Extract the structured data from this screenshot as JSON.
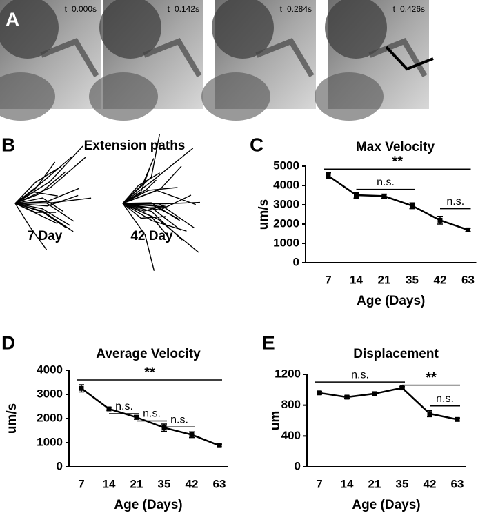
{
  "panel_a": {
    "label": "A",
    "frames": [
      "t=0.000s",
      "t=0.142s",
      "t=0.284s",
      "t=0.426s"
    ]
  },
  "panel_b": {
    "label": "B",
    "title": "Extension paths",
    "groups": [
      "7 Day",
      "42 Day"
    ]
  },
  "chart_data": [
    {
      "type": "line",
      "panel": "C",
      "title": "Max Velocity",
      "y_label": "um/s",
      "x_label": "Age (Days)",
      "categories": [
        "7",
        "14",
        "21",
        "35",
        "42",
        "63"
      ],
      "series": [
        {
          "color": "#000000",
          "values": [
            4500,
            3500,
            3450,
            2950,
            2200,
            1700
          ],
          "errors": [
            150,
            150,
            100,
            150,
            200,
            80
          ]
        }
      ],
      "ylim": [
        0,
        5000
      ],
      "yticks": [
        0,
        1000,
        2000,
        3000,
        4000,
        5000
      ],
      "annotations": [
        {
          "label": "**",
          "span": [
            0,
            5
          ],
          "y": 4850
        },
        {
          "label": "n.s.",
          "span": [
            1,
            3
          ],
          "y": 3800
        },
        {
          "label": "n.s.",
          "span": [
            4,
            5
          ],
          "y": 2800
        }
      ]
    },
    {
      "type": "line",
      "panel": "D",
      "title": "Average Velocity",
      "y_label": "um/s",
      "x_label": "Age (Days)",
      "categories": [
        "7",
        "14",
        "21",
        "35",
        "42",
        "63"
      ],
      "series": [
        {
          "color": "#000000",
          "values": [
            3250,
            2400,
            2050,
            1620,
            1330,
            880
          ],
          "errors": [
            150,
            50,
            80,
            150,
            120,
            60
          ]
        }
      ],
      "ylim": [
        0,
        4000
      ],
      "yticks": [
        0,
        1000,
        2000,
        3000,
        4000
      ],
      "annotations": [
        {
          "label": "**",
          "span": [
            0,
            5
          ],
          "y": 3600
        },
        {
          "label": "n.s.",
          "span": [
            1,
            2
          ],
          "y": 2200
        },
        {
          "label": "n.s.",
          "span": [
            2,
            3
          ],
          "y": 1900
        },
        {
          "label": "n.s.",
          "span": [
            3,
            4
          ],
          "y": 1650
        }
      ]
    },
    {
      "type": "line",
      "panel": "E",
      "title": "Displacement",
      "y_label": "um",
      "x_label": "Age (Days)",
      "categories": [
        "7",
        "14",
        "21",
        "35",
        "42",
        "63"
      ],
      "series": [
        {
          "color": "#000000",
          "values": [
            960,
            905,
            950,
            1025,
            690,
            615
          ],
          "errors": [
            20,
            15,
            20,
            15,
            40,
            20
          ]
        }
      ],
      "ylim": [
        0,
        1200
      ],
      "yticks": [
        0,
        400,
        800,
        1200
      ],
      "annotations": [
        {
          "label": "n.s.",
          "span": [
            0,
            3
          ],
          "y": 1100
        },
        {
          "label": "**",
          "span": [
            3,
            5
          ],
          "y": 1060
        },
        {
          "label": "n.s.",
          "span": [
            4,
            5
          ],
          "y": 790
        }
      ]
    }
  ]
}
